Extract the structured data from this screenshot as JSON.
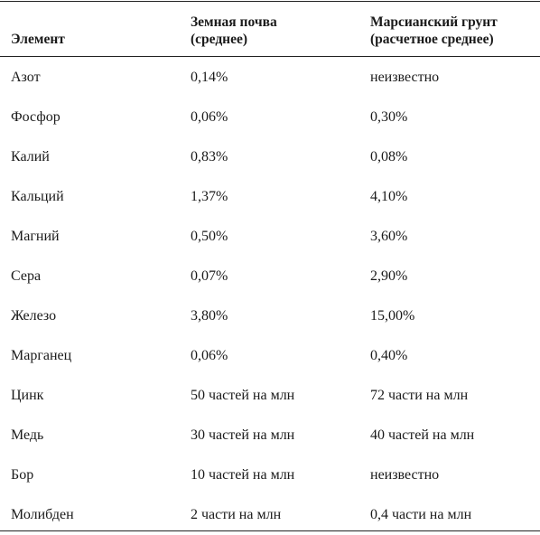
{
  "table": {
    "headers": {
      "element": "Элемент",
      "earth_line1": "Земная почва",
      "earth_line2": "(среднее)",
      "mars_line1": "Марсианский грунт",
      "mars_line2": "(расчетное среднее)"
    },
    "rows": [
      {
        "element": "Азот",
        "earth": "0,14%",
        "mars": "неизвестно"
      },
      {
        "element": "Фосфор",
        "earth": "0,06%",
        "mars": "0,30%"
      },
      {
        "element": "Калий",
        "earth": "0,83%",
        "mars": "0,08%"
      },
      {
        "element": "Кальций",
        "earth": "1,37%",
        "mars": "4,10%"
      },
      {
        "element": "Магний",
        "earth": "0,50%",
        "mars": "3,60%"
      },
      {
        "element": "Сера",
        "earth": "0,07%",
        "mars": "2,90%"
      },
      {
        "element": "Железо",
        "earth": "3,80%",
        "mars": "15,00%"
      },
      {
        "element": "Марганец",
        "earth": "0,06%",
        "mars": "0,40%"
      },
      {
        "element": "Цинк",
        "earth": "50 частей на млн",
        "mars": "72 части на млн"
      },
      {
        "element": "Медь",
        "earth": "30 частей на млн",
        "mars": "40 частей на млн"
      },
      {
        "element": "Бор",
        "earth": "10 частей на млн",
        "mars": "неизвестно"
      },
      {
        "element": "Молибден",
        "earth": "2 части на млн",
        "mars": "0,4 части на млн"
      }
    ]
  }
}
